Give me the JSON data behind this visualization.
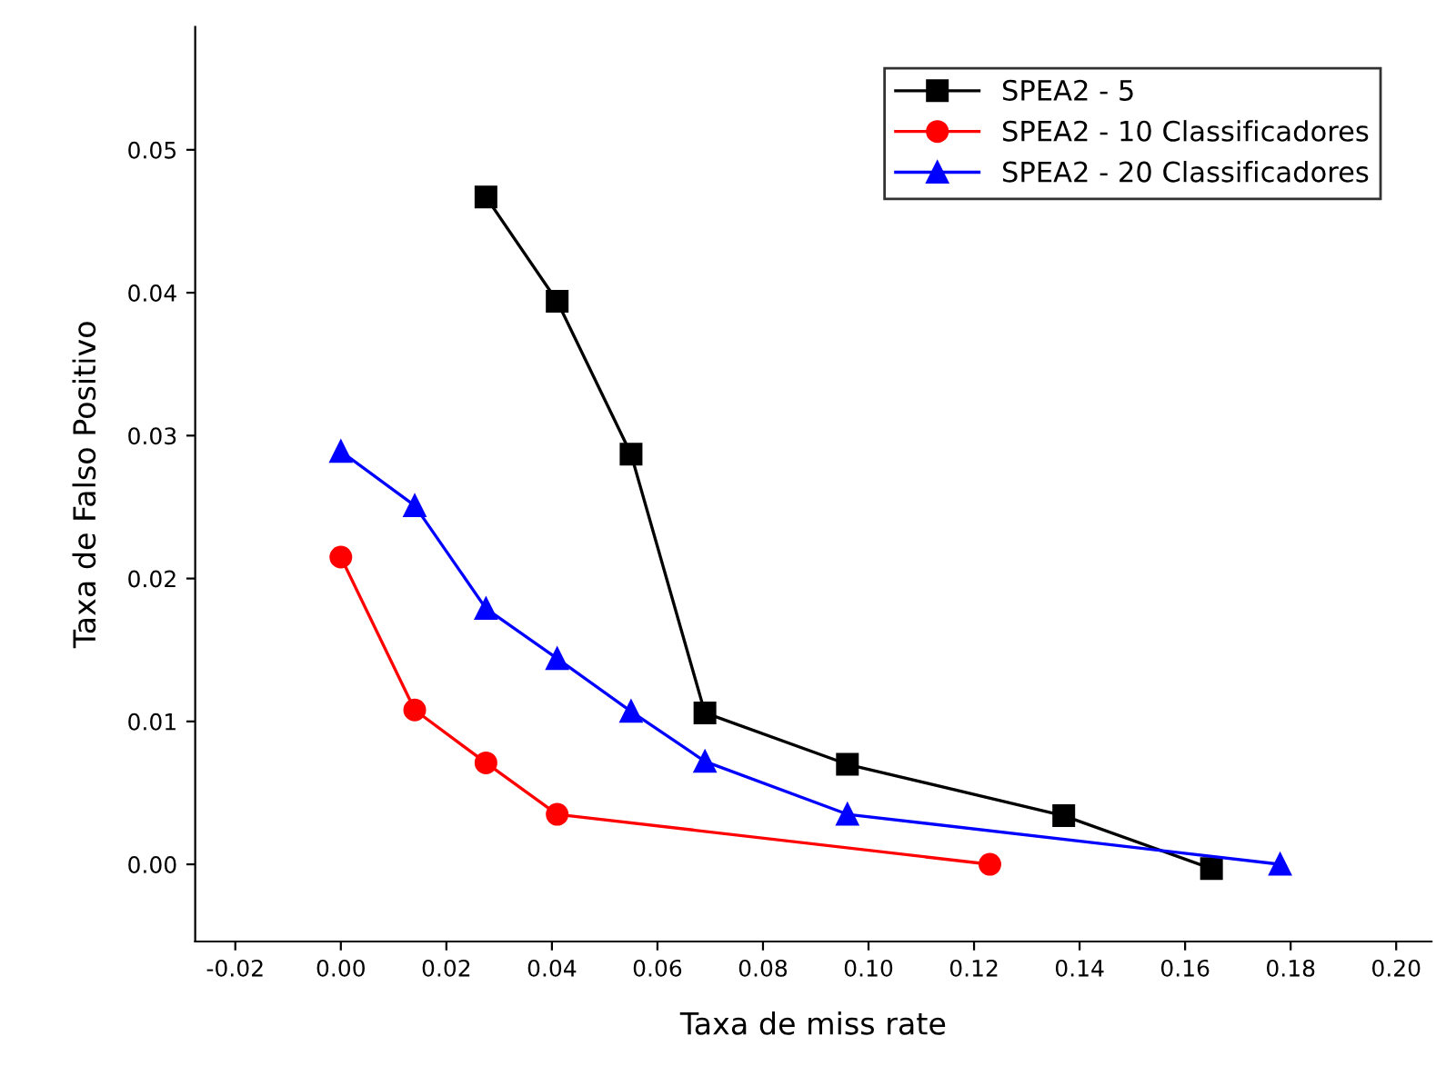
{
  "chart_data": {
    "type": "line",
    "xlabel": "Taxa de miss rate",
    "ylabel": "Taxa de Falso Positivo",
    "xlim": [
      -0.0276,
      0.2067
    ],
    "ylim": [
      -0.0054,
      0.0586
    ],
    "xticks": [
      {
        "value": -0.02,
        "label": "-0.02"
      },
      {
        "value": 0,
        "label": "0.00"
      },
      {
        "value": 0.02,
        "label": "0.02"
      },
      {
        "value": 0.04,
        "label": "0.04"
      },
      {
        "value": 0.06,
        "label": "0.06"
      },
      {
        "value": 0.08,
        "label": "0.08"
      },
      {
        "value": 0.1,
        "label": "0.10"
      },
      {
        "value": 0.12,
        "label": "0.12"
      },
      {
        "value": 0.14,
        "label": "0.14"
      },
      {
        "value": 0.16,
        "label": "0.16"
      },
      {
        "value": 0.18,
        "label": "0.18"
      },
      {
        "value": 0.2,
        "label": "0.20"
      }
    ],
    "yticks": [
      {
        "value": 0,
        "label": "0.00"
      },
      {
        "value": 0.01,
        "label": "0.01"
      },
      {
        "value": 0.02,
        "label": "0.02"
      },
      {
        "value": 0.03,
        "label": "0.03"
      },
      {
        "value": 0.04,
        "label": "0.04"
      },
      {
        "value": 0.05,
        "label": "0.05"
      }
    ],
    "grid": false,
    "legend": "top right",
    "line_style": "solid",
    "series": [
      {
        "name": "SPEA2 - 5",
        "color": "#000000",
        "marker": "square",
        "x": [
          0.0275,
          0.041,
          0.055,
          0.069,
          0.096,
          0.137,
          0.165
        ],
        "values": [
          0.0467,
          0.0394,
          0.0287,
          0.0106,
          0.007,
          0.0034,
          -0.0003
        ]
      },
      {
        "name": "SPEA2 - 10 Classificadores",
        "color": "#ff0000",
        "marker": "circle",
        "x": [
          0,
          0.014,
          0.0275,
          0.041,
          0.123
        ],
        "values": [
          0.0215,
          0.0108,
          0.0071,
          0.0035,
          0.0
        ]
      },
      {
        "name": "SPEA2 - 20 Classificadores",
        "color": "#0000ff",
        "marker": "triangle",
        "x": [
          0,
          0.014,
          0.0275,
          0.041,
          0.055,
          0.069,
          0.096,
          0.178
        ],
        "values": [
          0.0289,
          0.0251,
          0.0179,
          0.0144,
          0.0107,
          0.0072,
          0.0035,
          0.0
        ]
      }
    ]
  }
}
